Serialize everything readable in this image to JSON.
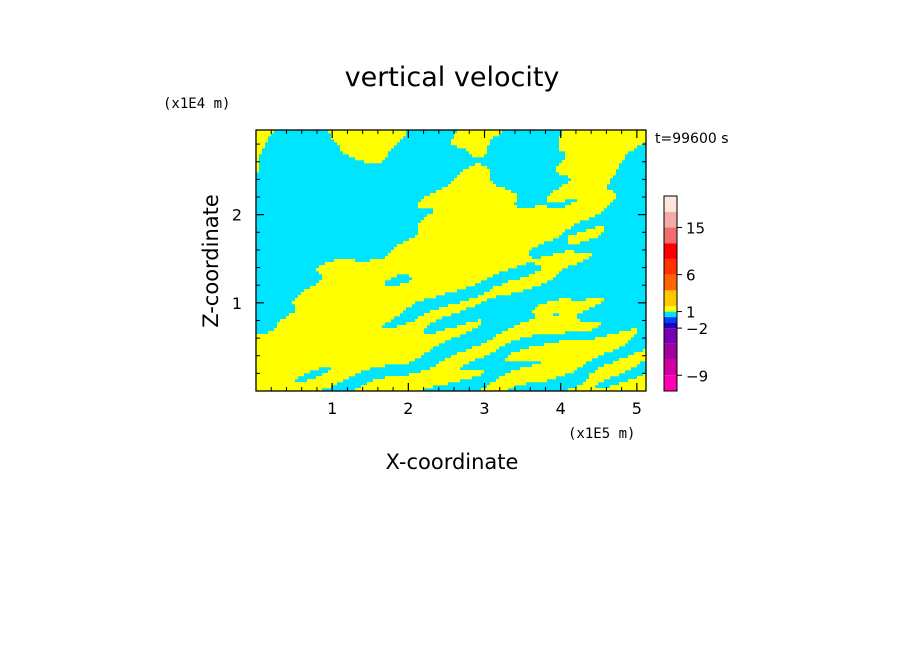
{
  "chart_data": {
    "type": "heatmap",
    "title": "vertical velocity",
    "time_label": "t=99600 s",
    "xlabel": "X-coordinate",
    "ylabel": "Z-coordinate",
    "x_unit": "(x1E5 m)",
    "y_unit": "(x1E4 m)",
    "xlim": [
      0,
      5.12
    ],
    "ylim": [
      0,
      2.96
    ],
    "x_ticks": [
      "1",
      "2",
      "3",
      "4",
      "5"
    ],
    "y_ticks": [
      "1",
      "2"
    ],
    "field_colors": {
      "positive": "#ffff00",
      "negative": "#00e5ff"
    },
    "colorbar": {
      "levels": [
        -12,
        -9,
        -6,
        -3,
        -2,
        -1,
        0,
        1,
        2,
        4,
        6,
        9,
        12,
        15,
        18,
        21
      ],
      "colors": [
        "#ff00b4",
        "#d200a0",
        "#a0009b",
        "#7800b4",
        "#1e00be",
        "#0041ff",
        "#00e5ff",
        "#ffff00",
        "#ffc800",
        "#ff6400",
        "#ff3200",
        "#ff0000",
        "#f06e6e",
        "#f5aaaa",
        "#ffe6dc"
      ],
      "tick_labels": [
        {
          "text": "15",
          "value": 15
        },
        {
          "text": "6",
          "value": 6
        },
        {
          "text": "1",
          "value": 1
        },
        {
          "text": "−2",
          "value": -2
        },
        {
          "text": "−9",
          "value": -9
        }
      ]
    }
  }
}
